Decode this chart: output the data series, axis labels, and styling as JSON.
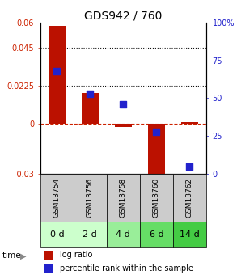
{
  "title": "GDS942 / 760",
  "samples": [
    "GSM13754",
    "GSM13756",
    "GSM13758",
    "GSM13760",
    "GSM13762"
  ],
  "time_labels": [
    "0 d",
    "2 d",
    "4 d",
    "6 d",
    "14 d"
  ],
  "log_ratios": [
    0.058,
    0.018,
    -0.002,
    -0.038,
    0.001
  ],
  "percentile_ranks": [
    68,
    53,
    46,
    28,
    5
  ],
  "ylim_left": [
    -0.03,
    0.06
  ],
  "ylim_right": [
    0,
    100
  ],
  "yticks_left": [
    -0.03,
    0,
    0.0225,
    0.045,
    0.06
  ],
  "yticks_left_labels": [
    "-0.03",
    "0",
    "0.0225",
    "0.045",
    "0.06"
  ],
  "yticks_right": [
    0,
    25,
    50,
    75,
    100
  ],
  "yticks_right_labels": [
    "0",
    "25",
    "50",
    "75",
    "100%"
  ],
  "hlines": [
    0.0225,
    0.045
  ],
  "bar_color": "#bb1100",
  "dot_color": "#2222cc",
  "bar_width": 0.5,
  "dot_size": 35,
  "sample_bg": "#cccccc",
  "time_bg_colors": [
    "#ccffcc",
    "#ccffcc",
    "#99ee99",
    "#66dd66",
    "#44cc44"
  ],
  "zero_line_color": "#cc2200",
  "dotted_line_color": "#111111",
  "plot_bg": "white",
  "left_label_color": "#cc2200",
  "right_label_color": "#2222cc",
  "title_fontsize": 10,
  "tick_fontsize": 7,
  "legend_fontsize": 7,
  "sample_fontsize": 6.5,
  "time_fontsize": 8
}
